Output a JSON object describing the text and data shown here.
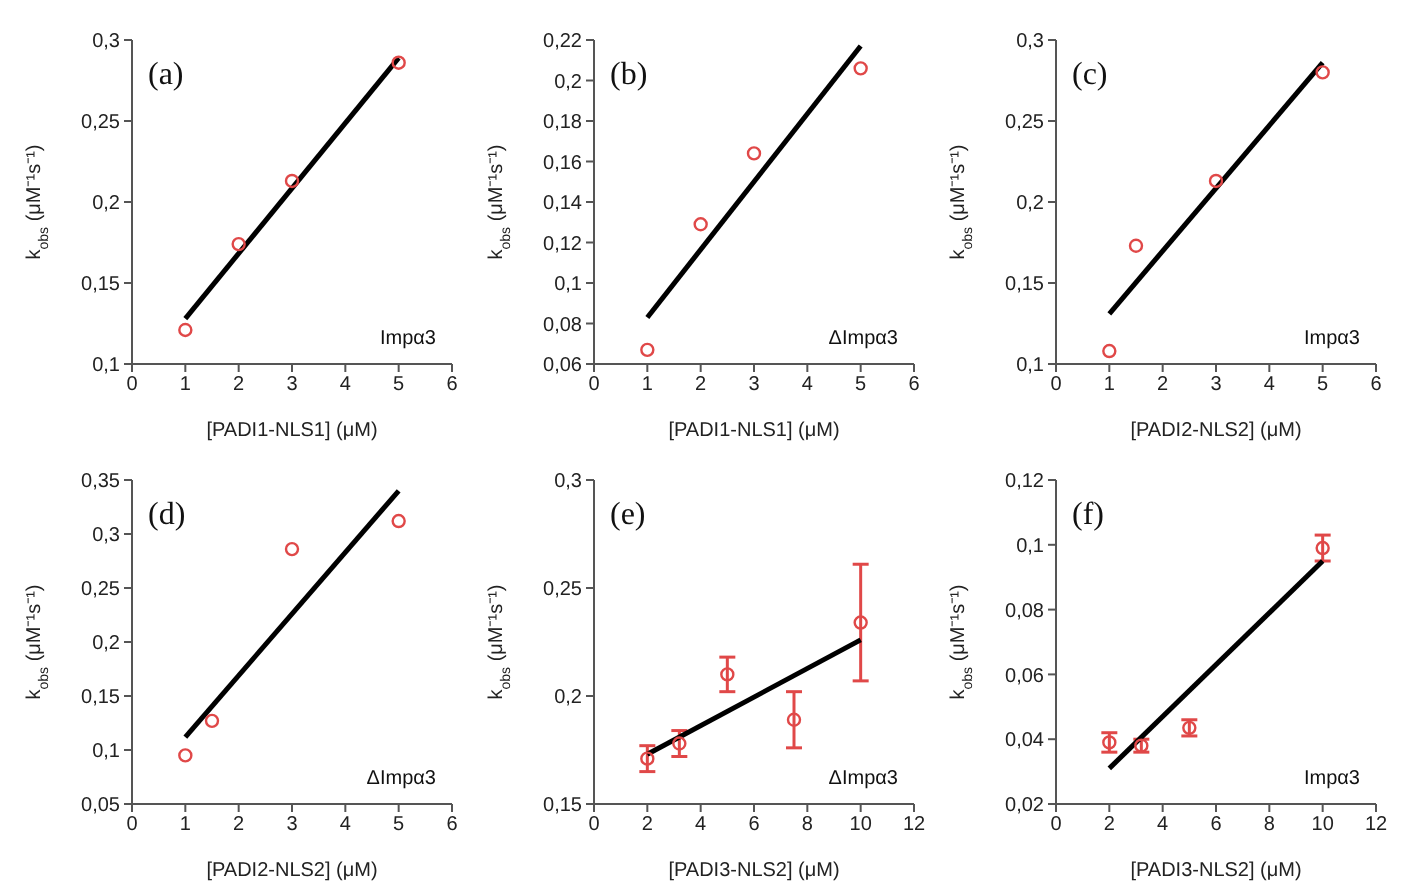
{
  "chart_data": [
    {
      "type": "scatter",
      "xlabel": "[PADI1-NLS1] (μM)",
      "ylabel": "k$_{obs}$ (μM⁻¹s⁻¹)",
      "annotations": [
        "(a)",
        "Impα3"
      ],
      "xlim": [
        0,
        6
      ],
      "xticks": [
        0,
        1,
        2,
        3,
        4,
        5,
        6
      ],
      "ylim": [
        0.1,
        0.3
      ],
      "yticks": [
        {
          "value": 0.1,
          "label": "0,1"
        },
        {
          "value": 0.15,
          "label": "0,15"
        },
        {
          "value": 0.2,
          "label": "0,2"
        },
        {
          "value": 0.25,
          "label": "0,25"
        },
        {
          "value": 0.3,
          "label": "0,3"
        }
      ],
      "series": [
        {
          "marker": "circle",
          "color": "#e04848",
          "x": [
            1,
            2,
            3,
            5
          ],
          "values": [
            0.121,
            0.174,
            0.213,
            0.286
          ]
        },
        {
          "type": "line",
          "color": "#000000",
          "line_style": "solid",
          "x": [
            1,
            5
          ],
          "values": [
            0.128,
            0.289
          ]
        }
      ]
    },
    {
      "type": "scatter",
      "xlabel": "[PADI1-NLS1] (μM)",
      "ylabel": "k$_{obs}$ (μM⁻¹s⁻¹)",
      "annotations": [
        "(b)",
        "ΔImpα3"
      ],
      "xlim": [
        0,
        6
      ],
      "xticks": [
        0,
        1,
        2,
        3,
        4,
        5,
        6
      ],
      "ylim": [
        0.06,
        0.22
      ],
      "yticks": [
        {
          "value": 0.06,
          "label": "0,06"
        },
        {
          "value": 0.08,
          "label": "0,08"
        },
        {
          "value": 0.1,
          "label": "0,1"
        },
        {
          "value": 0.12,
          "label": "0,12"
        },
        {
          "value": 0.14,
          "label": "0,14"
        },
        {
          "value": 0.16,
          "label": "0,16"
        },
        {
          "value": 0.18,
          "label": "0,18"
        },
        {
          "value": 0.2,
          "label": "0,2"
        },
        {
          "value": 0.22,
          "label": "0,22"
        }
      ],
      "series": [
        {
          "marker": "circle",
          "color": "#e04848",
          "x": [
            1,
            2,
            3,
            5
          ],
          "values": [
            0.067,
            0.129,
            0.164,
            0.206
          ]
        },
        {
          "type": "line",
          "color": "#000000",
          "line_style": "solid",
          "x": [
            1,
            5
          ],
          "values": [
            0.083,
            0.217
          ]
        }
      ]
    },
    {
      "type": "scatter",
      "xlabel": "[PADI2-NLS2] (μM)",
      "ylabel": "k$_{obs}$ (μM⁻¹s⁻¹)",
      "annotations": [
        "(c)",
        "Impα3"
      ],
      "xlim": [
        0,
        6
      ],
      "xticks": [
        0,
        1,
        2,
        3,
        4,
        5,
        6
      ],
      "ylim": [
        0.1,
        0.3
      ],
      "yticks": [
        {
          "value": 0.1,
          "label": "0,1"
        },
        {
          "value": 0.15,
          "label": "0,15"
        },
        {
          "value": 0.2,
          "label": "0,2"
        },
        {
          "value": 0.25,
          "label": "0,25"
        },
        {
          "value": 0.3,
          "label": "0,3"
        }
      ],
      "series": [
        {
          "marker": "circle",
          "color": "#e04848",
          "x": [
            1,
            1.5,
            3,
            5
          ],
          "values": [
            0.108,
            0.173,
            0.213,
            0.28
          ]
        },
        {
          "type": "line",
          "color": "#000000",
          "line_style": "solid",
          "x": [
            1,
            5
          ],
          "values": [
            0.131,
            0.286
          ]
        }
      ]
    },
    {
      "type": "scatter",
      "xlabel": "[PADI2-NLS2] (μM)",
      "ylabel": "k$_{obs}$ (μM⁻¹s⁻¹)",
      "annotations": [
        "(d)",
        "ΔImpα3"
      ],
      "xlim": [
        0,
        6
      ],
      "xticks": [
        0,
        1,
        2,
        3,
        4,
        5,
        6
      ],
      "ylim": [
        0.05,
        0.35
      ],
      "yticks": [
        {
          "value": 0.05,
          "label": "0,05"
        },
        {
          "value": 0.1,
          "label": "0,1"
        },
        {
          "value": 0.15,
          "label": "0,15"
        },
        {
          "value": 0.2,
          "label": "0,2"
        },
        {
          "value": 0.25,
          "label": "0,25"
        },
        {
          "value": 0.3,
          "label": "0,3"
        },
        {
          "value": 0.35,
          "label": "0,35"
        }
      ],
      "series": [
        {
          "marker": "circle",
          "color": "#e04848",
          "x": [
            1,
            1.5,
            3,
            5
          ],
          "values": [
            0.095,
            0.127,
            0.286,
            0.312
          ]
        },
        {
          "type": "line",
          "color": "#000000",
          "line_style": "solid",
          "x": [
            1,
            5
          ],
          "values": [
            0.112,
            0.34
          ]
        }
      ]
    },
    {
      "type": "scatter",
      "xlabel": "[PADI3-NLS2] (μM)",
      "ylabel": "k$_{obs}$ (μM⁻¹s⁻¹)",
      "annotations": [
        "(e)",
        "ΔImpα3"
      ],
      "xlim": [
        0,
        12
      ],
      "xticks": [
        0,
        2,
        4,
        6,
        8,
        10,
        12
      ],
      "ylim": [
        0.15,
        0.3
      ],
      "yticks": [
        {
          "value": 0.15,
          "label": "0,15"
        },
        {
          "value": 0.2,
          "label": "0,2"
        },
        {
          "value": 0.25,
          "label": "0,25"
        },
        {
          "value": 0.3,
          "label": "0,3"
        }
      ],
      "series": [
        {
          "marker": "circle",
          "color": "#e04848",
          "x": [
            2,
            3.2,
            5,
            7.5,
            10
          ],
          "values": [
            0.171,
            0.178,
            0.21,
            0.189,
            0.234
          ],
          "errors": [
            0.006,
            0.006,
            0.008,
            0.013,
            0.027
          ]
        },
        {
          "type": "line",
          "color": "#000000",
          "line_style": "solid",
          "x": [
            2,
            10
          ],
          "values": [
            0.173,
            0.226
          ]
        }
      ]
    },
    {
      "type": "scatter",
      "xlabel": "[PADI3-NLS2] (μM)",
      "ylabel": "k$_{obs}$ (μM⁻¹s⁻¹)",
      "annotations": [
        "(f)",
        "Impα3"
      ],
      "xlim": [
        0,
        12
      ],
      "xticks": [
        0,
        2,
        4,
        6,
        8,
        10,
        12
      ],
      "ylim": [
        0.02,
        0.12
      ],
      "yticks": [
        {
          "value": 0.02,
          "label": "0,02"
        },
        {
          "value": 0.04,
          "label": "0,04"
        },
        {
          "value": 0.06,
          "label": "0,06"
        },
        {
          "value": 0.08,
          "label": "0,08"
        },
        {
          "value": 0.1,
          "label": "0,1"
        },
        {
          "value": 0.12,
          "label": "0,12"
        }
      ],
      "series": [
        {
          "marker": "circle",
          "color": "#e04848",
          "x": [
            2,
            3.2,
            5,
            10
          ],
          "values": [
            0.039,
            0.038,
            0.0435,
            0.099
          ],
          "errors": [
            0.003,
            0.002,
            0.0025,
            0.004
          ]
        },
        {
          "type": "line",
          "color": "#000000",
          "line_style": "solid",
          "x": [
            2,
            10
          ],
          "values": [
            0.031,
            0.095
          ]
        }
      ]
    }
  ]
}
